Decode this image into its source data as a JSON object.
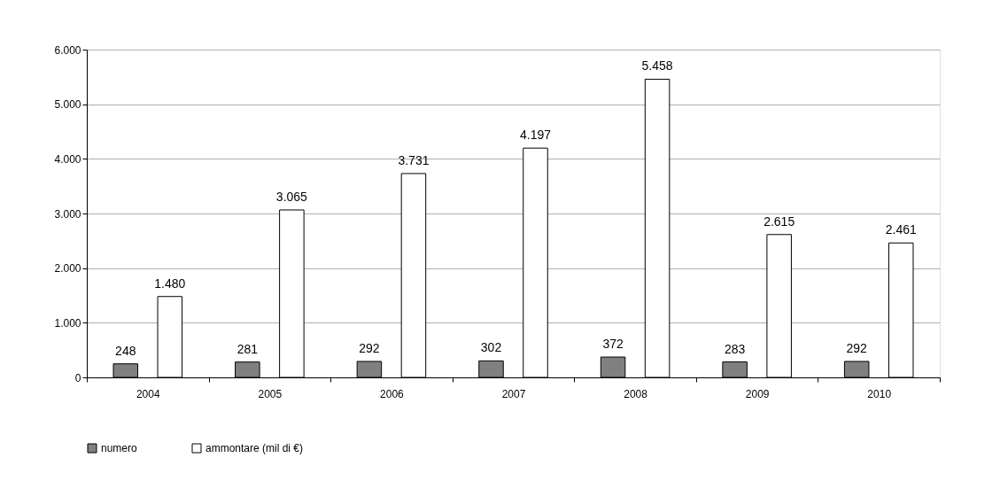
{
  "chart_data": {
    "type": "bar",
    "categories": [
      "2004",
      "2005",
      "2006",
      "2007",
      "2008",
      "2009",
      "2010"
    ],
    "series": [
      {
        "name": "numero",
        "color": "#808080",
        "values": [
          248,
          281,
          292,
          302,
          372,
          283,
          292
        ],
        "value_labels": [
          "248",
          "281",
          "292",
          "302",
          "372",
          "283",
          "292"
        ]
      },
      {
        "name": "ammontare (mil di €)",
        "color": "#ffffff",
        "values": [
          1480,
          3065,
          3731,
          4197,
          5458,
          2615,
          2461
        ],
        "value_labels": [
          "1.480",
          "3.065",
          "3.731",
          "4.197",
          "5.458",
          "2.615",
          "2.461"
        ]
      }
    ],
    "ylim": [
      0,
      6000
    ],
    "yticks": [
      0,
      {
        "value": 1000,
        "label": "1.000"
      },
      {
        "value": 2000,
        "label": "2.000"
      },
      {
        "value": 3000,
        "label": "3.000"
      },
      {
        "value": 4000,
        "label": "4.000"
      },
      {
        "value": 5000,
        "label": "5.000"
      },
      {
        "value": 6000,
        "label": "6.000"
      }
    ],
    "grid": "y",
    "legend": "bottom"
  }
}
